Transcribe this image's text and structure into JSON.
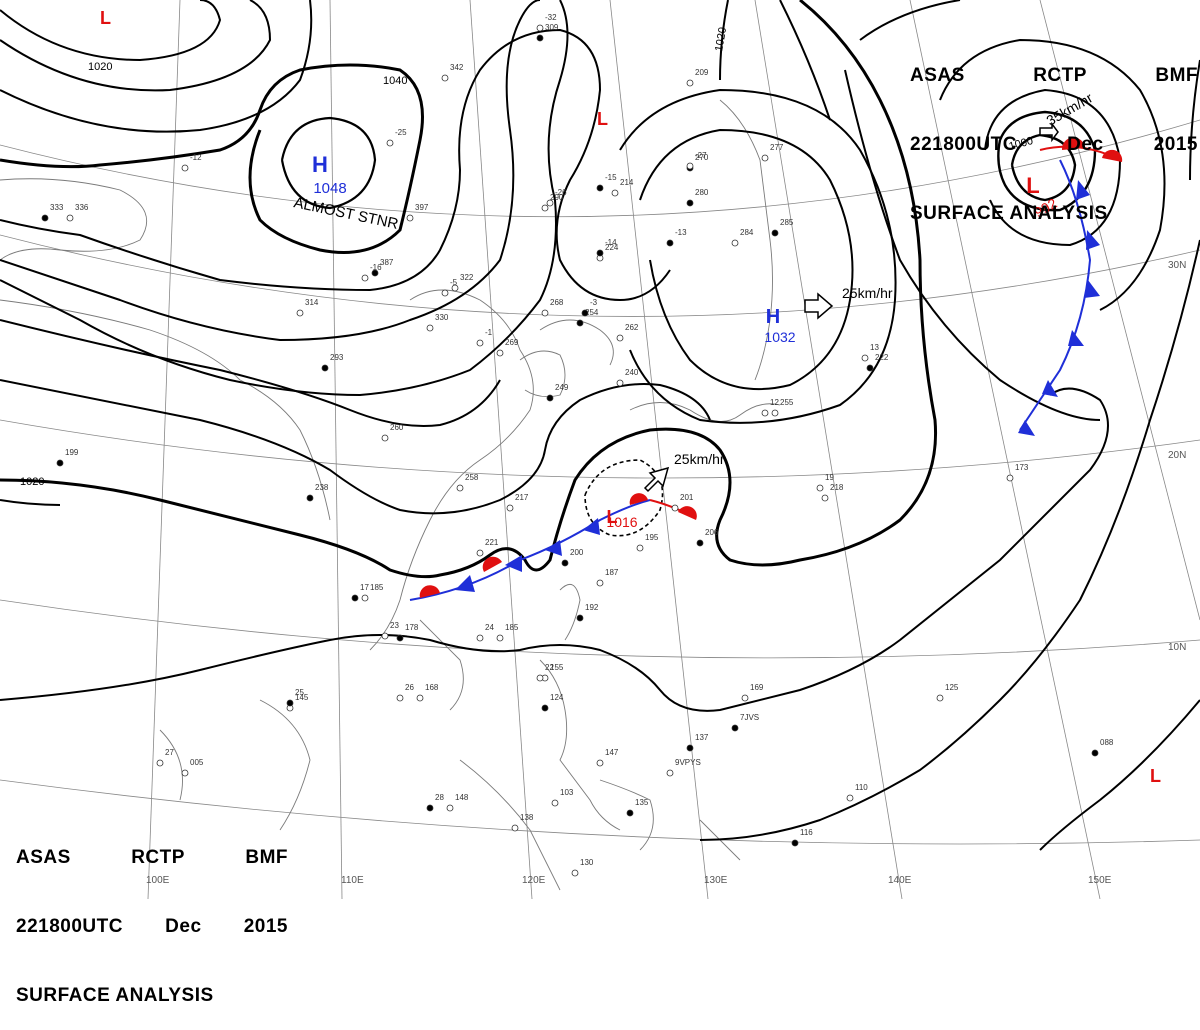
{
  "header": {
    "agency": [
      "ASAS",
      "RCTP",
      "BMF"
    ],
    "datetime": [
      "221800UTC",
      "Dec",
      "2015"
    ],
    "title": "SURFACE ANALYSIS"
  },
  "pressure_centers": [
    {
      "type": "H",
      "value": "1048",
      "color": "#1f2fd8",
      "note": "ALMOST STNR"
    },
    {
      "type": "H",
      "value": "1032",
      "color": "#1f2fd8",
      "motion": "25km/hr"
    },
    {
      "type": "L",
      "value": "1016",
      "color": "#e01010",
      "motion": "25km/hr"
    },
    {
      "type": "L",
      "value": "992",
      "color": "#e01010",
      "motion": "35km/hr"
    }
  ],
  "standalone_lows": [
    "L",
    "L",
    "L"
  ],
  "isobar_labels": [
    "1020",
    "1040",
    "1020",
    "1020",
    "1000"
  ],
  "longitude_labels": [
    "100E",
    "110E",
    "120E",
    "130E",
    "140E",
    "150E"
  ],
  "latitude_labels": [
    "30N",
    "20N",
    "10N"
  ],
  "station_labels": [
    "309",
    "342",
    "209",
    "270",
    "214",
    "290",
    "280",
    "224",
    "284",
    "285",
    "277",
    "397",
    "387",
    "322",
    "268",
    "254",
    "262",
    "269",
    "249",
    "240",
    "255",
    "222",
    "258",
    "260",
    "238",
    "217",
    "201",
    "206",
    "195",
    "187",
    "200",
    "221",
    "185",
    "178",
    "168",
    "145",
    "192",
    "185",
    "155",
    "124",
    "169",
    "147",
    "137",
    "148",
    "138",
    "135",
    "130",
    "103",
    "116",
    "110",
    "125",
    "088",
    "218",
    "173",
    "199",
    "005",
    "336",
    "333",
    "314",
    "330",
    "293",
    "-32",
    "-12",
    "-15",
    "-27",
    "-26",
    "-14",
    "-16",
    "-25",
    "-13",
    "-5",
    "-1",
    "-3",
    "13",
    "12",
    "17",
    "23",
    "24",
    "25",
    "26",
    "27",
    "28",
    "19",
    "22",
    "7JVS",
    "9VPYS"
  ],
  "colors": {
    "isobar": "#000000",
    "cold_front": "#1f2fd8",
    "warm_front": "#e01010",
    "coast": "#777777",
    "grid": "#777777"
  }
}
